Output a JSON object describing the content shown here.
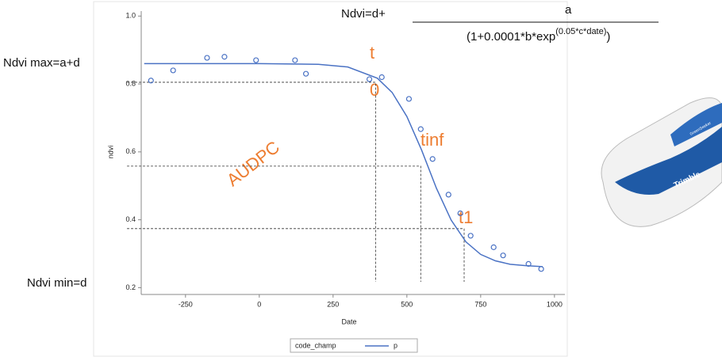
{
  "chart_data": {
    "type": "scatter",
    "x_label": "Date",
    "y_label": "ndvi",
    "xlim": [
      -400,
      1030
    ],
    "ylim": [
      0.18,
      1.01
    ],
    "xticks": [
      -250,
      0,
      250,
      500,
      750,
      1000
    ],
    "yticks": [
      {
        "value": 0.2,
        "label": "0.2"
      },
      {
        "value": 0.4,
        "label": "0.4"
      },
      {
        "value": 0.6,
        "label": "0.6"
      },
      {
        "value": 0.8,
        "label": "0.8"
      },
      {
        "value": 1.0,
        "label": "1.0"
      }
    ],
    "series": [
      {
        "name": "code_champ",
        "type": "scatter",
        "color": "#4a72c4",
        "x": [
          -367,
          -292,
          -177,
          -118,
          -11,
          121,
          158,
          373,
          415,
          507,
          547,
          587,
          641,
          681,
          716,
          794,
          826,
          912,
          955
        ],
        "values": [
          0.81,
          0.84,
          0.877,
          0.88,
          0.87,
          0.87,
          0.83,
          0.814,
          0.82,
          0.756,
          0.667,
          0.579,
          0.474,
          0.419,
          0.353,
          0.319,
          0.295,
          0.27,
          0.255
        ]
      },
      {
        "name": "p",
        "type": "line",
        "color": "#4a72c4",
        "x": [
          -390,
          -200,
          0,
          200,
          300,
          400,
          450,
          500,
          550,
          600,
          650,
          700,
          750,
          800,
          850,
          900,
          960
        ],
        "values": [
          0.86,
          0.86,
          0.86,
          0.858,
          0.85,
          0.817,
          0.775,
          0.704,
          0.605,
          0.493,
          0.399,
          0.335,
          0.298,
          0.279,
          0.269,
          0.265,
          0.262
        ]
      }
    ],
    "guides": [
      {
        "x": 394,
        "y": 0.805
      },
      {
        "x": 547,
        "y": 0.558
      },
      {
        "x": 694,
        "y": 0.374
      }
    ],
    "annotations": {
      "formula_left": "Ndvi=d+",
      "formula_numerator": "a",
      "formula_denominator": "(1+0.0001*b*exp",
      "formula_exponent": "(0.05*c*date)",
      "formula_close": ")",
      "max_label": "Ndvi max=a+d",
      "min_label": "Ndvi min=d",
      "t0_t": "t",
      "t0_0": "0",
      "tinf": "tinf",
      "audpc": "AUDPC",
      "t1": "t1"
    },
    "device": {
      "label": "Trimble",
      "model": "GreenSeeker"
    }
  }
}
